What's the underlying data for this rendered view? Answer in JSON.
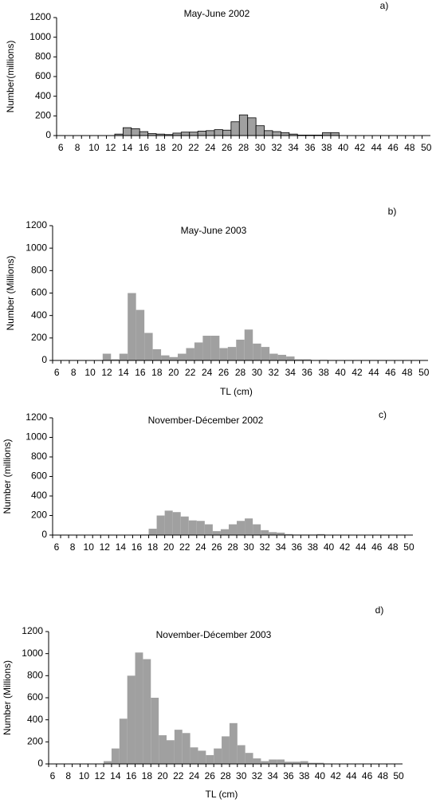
{
  "chart_data": [
    {
      "type": "bar",
      "title": "May-June 2002",
      "panel": "a)",
      "y_label": "Number(millions)",
      "categories": [
        6,
        null,
        8,
        null,
        10,
        null,
        12,
        null,
        14,
        null,
        16,
        null,
        18,
        null,
        20,
        null,
        22,
        null,
        24,
        null,
        26,
        null,
        28,
        null,
        30,
        null,
        32,
        null,
        34,
        null,
        36,
        null,
        38,
        null,
        40,
        null,
        42,
        null,
        44,
        null,
        46,
        null,
        48,
        null,
        50
      ],
      "values": [
        0,
        0,
        0,
        0,
        0,
        0,
        0,
        15,
        80,
        70,
        40,
        20,
        15,
        10,
        25,
        35,
        35,
        45,
        50,
        60,
        55,
        140,
        210,
        180,
        100,
        50,
        40,
        30,
        15,
        5,
        5,
        5,
        30,
        30,
        0,
        0,
        0,
        0,
        0,
        0,
        0,
        0,
        0,
        0,
        0
      ],
      "color": "#a0a0a0",
      "edgecolor": "#000000",
      "ylim": [
        0,
        1200
      ],
      "yticks": [
        0,
        200,
        400,
        600,
        800,
        1000,
        1200
      ]
    },
    {
      "type": "bar",
      "title": "May-June 2003",
      "panel": "b)",
      "y_label": "Number  (Millions)",
      "x_label": "TL (cm)",
      "categories": [
        6,
        null,
        8,
        null,
        10,
        null,
        12,
        null,
        14,
        null,
        16,
        null,
        18,
        null,
        20,
        null,
        22,
        null,
        24,
        null,
        26,
        null,
        28,
        null,
        30,
        null,
        32,
        null,
        34,
        null,
        36,
        null,
        38,
        null,
        40,
        null,
        42,
        null,
        44,
        null,
        46,
        null,
        48,
        null,
        50
      ],
      "values": [
        0,
        0,
        0,
        0,
        0,
        0,
        60,
        10,
        60,
        600,
        450,
        245,
        100,
        45,
        30,
        60,
        110,
        160,
        220,
        220,
        110,
        120,
        185,
        275,
        150,
        120,
        60,
        50,
        35,
        10,
        10,
        0,
        5,
        0,
        0,
        0,
        0,
        0,
        0,
        0,
        0,
        0,
        0,
        0,
        0
      ],
      "color": "#a0a0a0",
      "ylim": [
        0,
        1200
      ],
      "yticks": [
        0,
        200,
        400,
        600,
        800,
        1000,
        1200
      ]
    },
    {
      "type": "bar",
      "title": "November-Décember 2002",
      "panel": "c)",
      "y_label": "Number (millions)",
      "categories": [
        6,
        null,
        8,
        null,
        10,
        null,
        12,
        null,
        14,
        null,
        16,
        null,
        18,
        null,
        20,
        null,
        22,
        null,
        24,
        null,
        26,
        null,
        28,
        null,
        30,
        null,
        32,
        null,
        34,
        null,
        36,
        null,
        38,
        null,
        40,
        null,
        42,
        null,
        44,
        null,
        46,
        null,
        48,
        null,
        50
      ],
      "values": [
        0,
        0,
        0,
        0,
        0,
        0,
        0,
        0,
        0,
        0,
        0,
        5,
        65,
        200,
        250,
        235,
        190,
        150,
        145,
        110,
        40,
        60,
        110,
        145,
        170,
        110,
        50,
        30,
        25,
        10,
        5,
        5,
        5,
        10,
        0,
        0,
        0,
        0,
        0,
        0,
        0,
        0,
        0,
        0,
        0
      ],
      "color": "#a0a0a0",
      "ylim": [
        0,
        1200
      ],
      "yticks": [
        0,
        200,
        400,
        600,
        800,
        1000,
        1200
      ]
    },
    {
      "type": "bar",
      "title": "November-Décember 2003",
      "panel": "d)",
      "y_label": "Number (Millions)",
      "x_label": "TL (cm)",
      "categories": [
        6,
        null,
        8,
        null,
        10,
        null,
        12,
        null,
        14,
        null,
        16,
        null,
        18,
        null,
        20,
        null,
        22,
        null,
        24,
        null,
        26,
        null,
        28,
        null,
        30,
        null,
        32,
        null,
        34,
        null,
        36,
        null,
        38,
        null,
        40,
        null,
        42,
        null,
        44,
        null,
        46,
        null,
        48,
        null,
        50
      ],
      "values": [
        0,
        0,
        0,
        0,
        0,
        0,
        0,
        25,
        140,
        410,
        800,
        1010,
        950,
        600,
        260,
        215,
        310,
        280,
        150,
        120,
        80,
        140,
        250,
        370,
        170,
        100,
        50,
        25,
        40,
        40,
        20,
        20,
        25,
        10,
        10,
        0,
        0,
        0,
        0,
        0,
        0,
        0,
        0,
        0,
        0
      ],
      "color": "#a0a0a0",
      "ylim": [
        0,
        1200
      ],
      "yticks": [
        0,
        200,
        400,
        600,
        800,
        1000,
        1200
      ]
    }
  ]
}
